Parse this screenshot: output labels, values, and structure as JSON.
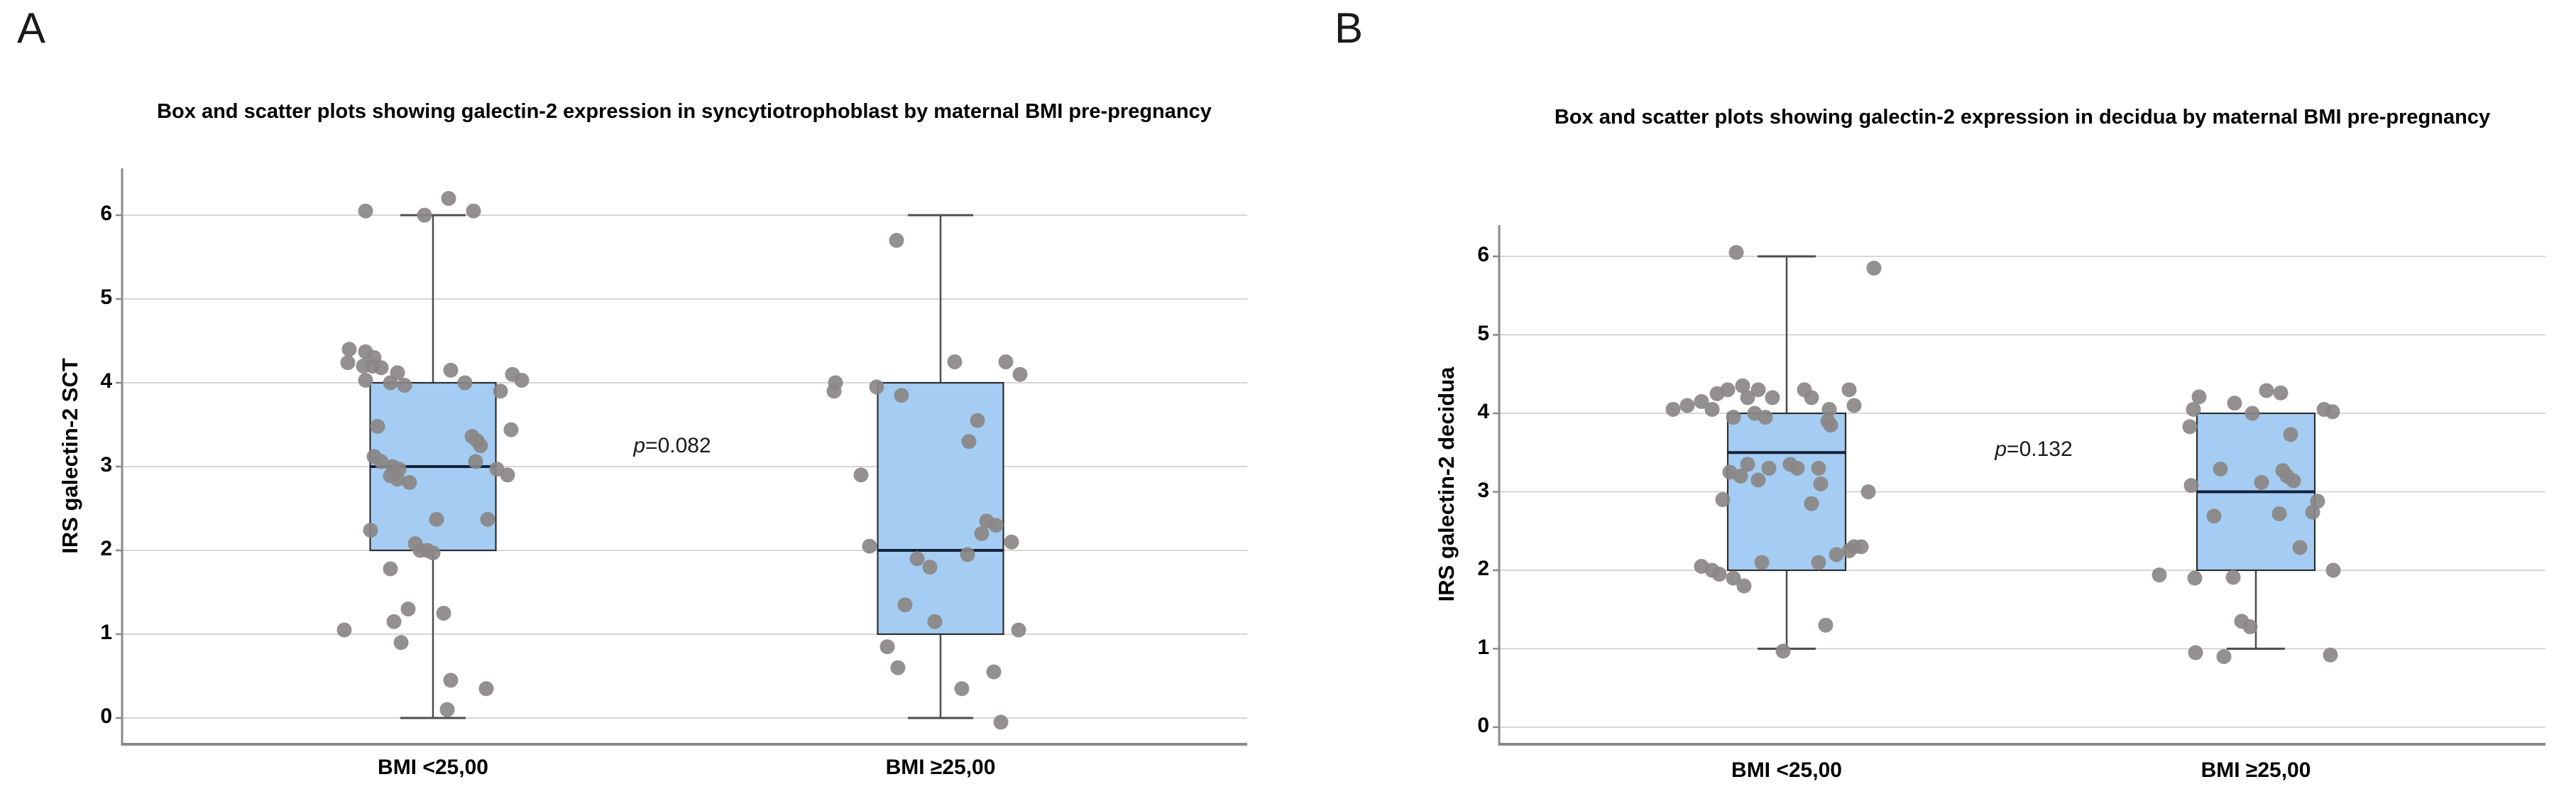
{
  "figure": {
    "background": "#ffffff",
    "colors": {
      "box_fill": "#a5cdf3",
      "box_border": "#2f2f2f",
      "median_line": "#152238",
      "whisker": "#4e4e4e",
      "gridline": "#cacaca",
      "axis": "#8a8a8a",
      "point": "#8a8786",
      "text": "#000000"
    }
  },
  "chart_data": [
    {
      "type": "box-scatter",
      "panel_letter": "A",
      "title": "Box and scatter plots showing galectin-2 expression in syncytiotrophoblast by maternal BMI pre-pregnancy",
      "ylabel": "IRS galectin-2 SCT",
      "xlabel": "",
      "yticks": [
        0,
        1,
        2,
        3,
        4,
        5,
        6
      ],
      "ylim": [
        -0.35,
        6.55
      ],
      "grid": true,
      "legend": "none",
      "p_sym": "p",
      "p_rest": "=0.082",
      "groups": [
        {
          "category": "BMI <25,00",
          "box": {
            "whisker_low": 0,
            "q1": 2,
            "median": 3,
            "q3": 4,
            "whisker_high": 6
          },
          "points": [
            [
              6.05,
              -95
            ],
            [
              6.0,
              -12
            ],
            [
              6.2,
              22
            ],
            [
              6.05,
              57
            ],
            [
              4.4,
              -118
            ],
            [
              4.37,
              -95
            ],
            [
              4.3,
              -83
            ],
            [
              4.24,
              -120
            ],
            [
              4.2,
              -98
            ],
            [
              4.2,
              -85
            ],
            [
              4.18,
              -73
            ],
            [
              4.12,
              -50
            ],
            [
              4.15,
              25
            ],
            [
              4.1,
              112
            ],
            [
              4.03,
              125
            ],
            [
              4.0,
              45
            ],
            [
              4.03,
              -95
            ],
            [
              4.0,
              -60
            ],
            [
              3.97,
              -40
            ],
            [
              3.9,
              95
            ],
            [
              3.48,
              -78
            ],
            [
              3.44,
              110
            ],
            [
              3.36,
              55
            ],
            [
              3.31,
              62
            ],
            [
              3.25,
              67
            ],
            [
              3.12,
              -83
            ],
            [
              3.06,
              -73
            ],
            [
              3.0,
              -57
            ],
            [
              2.97,
              -48
            ],
            [
              3.06,
              60
            ],
            [
              2.97,
              90
            ],
            [
              2.9,
              105
            ],
            [
              2.89,
              -60
            ],
            [
              2.85,
              -50
            ],
            [
              2.81,
              -33
            ],
            [
              2.37,
              5
            ],
            [
              2.37,
              77
            ],
            [
              2.24,
              -88
            ],
            [
              2.08,
              -25
            ],
            [
              2.0,
              -18
            ],
            [
              2.0,
              -8
            ],
            [
              1.97,
              0
            ],
            [
              1.78,
              -60
            ],
            [
              1.3,
              -35
            ],
            [
              1.25,
              15
            ],
            [
              1.15,
              -55
            ],
            [
              1.05,
              -125
            ],
            [
              0.9,
              -45
            ],
            [
              0.45,
              25
            ],
            [
              0.35,
              75
            ],
            [
              0.1,
              20
            ]
          ]
        },
        {
          "category": "BMI ≥25,00",
          "box": {
            "whisker_low": 0,
            "q1": 1,
            "median": 2,
            "q3": 4,
            "whisker_high": 6
          },
          "points": [
            [
              5.7,
              -62
            ],
            [
              4.25,
              20
            ],
            [
              4.25,
              92
            ],
            [
              4.1,
              112
            ],
            [
              4.0,
              -148
            ],
            [
              3.9,
              -150
            ],
            [
              3.95,
              -90
            ],
            [
              3.85,
              -55
            ],
            [
              3.55,
              52
            ],
            [
              3.3,
              40
            ],
            [
              2.9,
              -112
            ],
            [
              2.35,
              65
            ],
            [
              2.3,
              78
            ],
            [
              2.2,
              58
            ],
            [
              2.1,
              100
            ],
            [
              2.05,
              -100
            ],
            [
              1.95,
              38
            ],
            [
              1.9,
              -33
            ],
            [
              1.8,
              -15
            ],
            [
              1.35,
              -50
            ],
            [
              1.15,
              -8
            ],
            [
              1.05,
              110
            ],
            [
              0.85,
              -75
            ],
            [
              0.6,
              -60
            ],
            [
              0.55,
              75
            ],
            [
              0.35,
              30
            ],
            [
              -0.05,
              85
            ]
          ]
        }
      ]
    },
    {
      "type": "box-scatter",
      "panel_letter": "B",
      "title": "Box and scatter plots showing galectin-2 expression in decidua by maternal BMI pre-pregnancy",
      "ylabel": "IRS galectin-2 decidua",
      "xlabel": "",
      "yticks": [
        0,
        1,
        2,
        3,
        4,
        5,
        6
      ],
      "ylim": [
        -0.25,
        6.4
      ],
      "grid": true,
      "legend": "none",
      "p_sym": "p",
      "p_rest": "=0.132",
      "groups": [
        {
          "category": "BMI <25,00",
          "box": {
            "whisker_low": 1,
            "q1": 2,
            "median": 3.5,
            "q3": 4,
            "whisker_high": 6
          },
          "points": [
            [
              6.05,
              -71
            ],
            [
              5.85,
              123
            ],
            [
              4.35,
              -62
            ],
            [
              4.3,
              -83
            ],
            [
              4.3,
              -40
            ],
            [
              4.25,
              -98
            ],
            [
              4.2,
              -55
            ],
            [
              4.2,
              -20
            ],
            [
              4.15,
              -120
            ],
            [
              4.1,
              -140
            ],
            [
              4.05,
              -160
            ],
            [
              4.05,
              -105
            ],
            [
              4.3,
              25
            ],
            [
              4.2,
              35
            ],
            [
              4.3,
              88
            ],
            [
              4.1,
              95
            ],
            [
              4.05,
              60
            ],
            [
              4.0,
              -45
            ],
            [
              3.95,
              -75
            ],
            [
              3.95,
              -30
            ],
            [
              3.9,
              58
            ],
            [
              3.85,
              62
            ],
            [
              3.35,
              -55
            ],
            [
              3.3,
              -25
            ],
            [
              3.35,
              5
            ],
            [
              3.3,
              15
            ],
            [
              3.25,
              -80
            ],
            [
              3.2,
              -65
            ],
            [
              3.15,
              -40
            ],
            [
              3.3,
              45
            ],
            [
              3.1,
              48
            ],
            [
              3.0,
              115
            ],
            [
              2.9,
              -90
            ],
            [
              2.85,
              35
            ],
            [
              2.3,
              95
            ],
            [
              2.3,
              105
            ],
            [
              2.25,
              88
            ],
            [
              2.2,
              70
            ],
            [
              2.1,
              -35
            ],
            [
              2.1,
              45
            ],
            [
              2.05,
              -120
            ],
            [
              2.0,
              -105
            ],
            [
              1.95,
              -95
            ],
            [
              1.9,
              -75
            ],
            [
              1.8,
              -60
            ],
            [
              1.3,
              55
            ],
            [
              0.97,
              -5
            ]
          ]
        },
        {
          "category": "BMI ≥25,00",
          "box": {
            "whisker_low": 1,
            "q1": 2,
            "median": 3,
            "q3": 4,
            "whisker_high": 4
          },
          "points": [
            [
              4.29,
              15
            ],
            [
              4.26,
              35
            ],
            [
              4.21,
              -80
            ],
            [
              4.13,
              -30
            ],
            [
              4.05,
              -88
            ],
            [
              4.05,
              96
            ],
            [
              4.0,
              -5
            ],
            [
              4.02,
              108
            ],
            [
              3.83,
              -93
            ],
            [
              3.73,
              49
            ],
            [
              3.29,
              -50
            ],
            [
              3.27,
              38
            ],
            [
              3.2,
              44
            ],
            [
              3.14,
              53
            ],
            [
              3.12,
              8
            ],
            [
              3.08,
              -91
            ],
            [
              2.88,
              87
            ],
            [
              2.74,
              80
            ],
            [
              2.72,
              33
            ],
            [
              2.69,
              -59
            ],
            [
              2.29,
              62
            ],
            [
              2.0,
              109
            ],
            [
              1.94,
              -136
            ],
            [
              1.9,
              -86
            ],
            [
              1.91,
              -32
            ],
            [
              1.35,
              -20
            ],
            [
              1.28,
              -8
            ],
            [
              0.95,
              -85
            ],
            [
              0.9,
              -45
            ],
            [
              0.92,
              105
            ]
          ]
        }
      ]
    }
  ]
}
